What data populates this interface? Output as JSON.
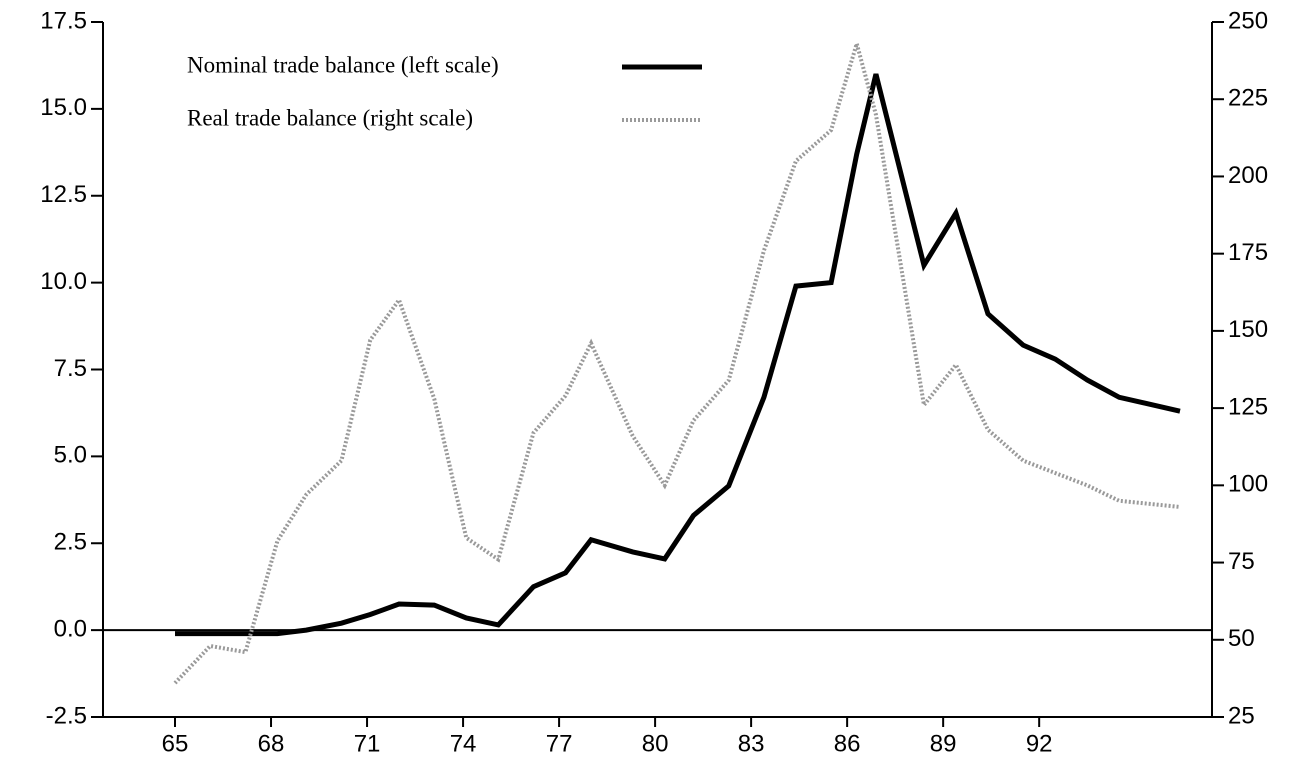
{
  "chart_data": {
    "type": "line",
    "x": [
      65,
      66.1,
      67.2,
      68.2,
      69.1,
      70.2,
      71.1,
      72.0,
      73.1,
      74.1,
      75.1,
      76.2,
      77.2,
      78.0,
      79.3,
      80.3,
      81.2,
      82.3,
      83.4,
      84.4,
      85.5,
      86.3,
      86.9,
      88.4,
      89.4,
      90.4,
      91.5,
      92.5,
      93.5,
      94.5,
      96.4
    ],
    "series": [
      {
        "name": "Nominal trade balance (left scale)",
        "color": "#000000",
        "axis": "y",
        "values": [
          -0.1,
          -0.1,
          -0.1,
          -0.1,
          0.0,
          0.2,
          0.45,
          0.75,
          0.72,
          0.35,
          0.15,
          1.25,
          1.65,
          2.6,
          2.25,
          2.05,
          3.3,
          4.15,
          6.7,
          9.9,
          10.0,
          13.7,
          16.0,
          10.5,
          12.0,
          9.1,
          8.2,
          7.8,
          7.2,
          6.7,
          6.3
        ]
      },
      {
        "name": "Real trade balance (right scale)",
        "color": "#9a9a9a",
        "axis": "y2",
        "values": [
          36,
          48,
          46,
          82,
          97,
          108,
          147,
          160,
          128,
          83,
          76,
          117,
          129,
          146,
          116,
          100,
          121,
          134,
          176,
          205,
          215,
          243,
          220,
          126,
          139,
          118,
          108,
          104,
          100,
          95,
          93
        ]
      }
    ],
    "xlim": [
      62.75,
      97.4
    ],
    "xticks": [
      65,
      68,
      71,
      74,
      77,
      80,
      83,
      86,
      89,
      92
    ],
    "ylim": [
      -2.5,
      17.5
    ],
    "yticks": [
      -2.5,
      {
        "value": 0,
        "label": "0.0"
      },
      2.5,
      {
        "value": 5,
        "label": "5.0"
      },
      7.5,
      {
        "value": 10,
        "label": "10.0"
      },
      12.5,
      {
        "value": 15,
        "label": "15.0"
      },
      17.5
    ],
    "y2lim": [
      25,
      250
    ],
    "y2ticks": [
      25,
      50,
      75,
      100,
      125,
      150,
      175,
      200,
      225,
      250
    ]
  }
}
